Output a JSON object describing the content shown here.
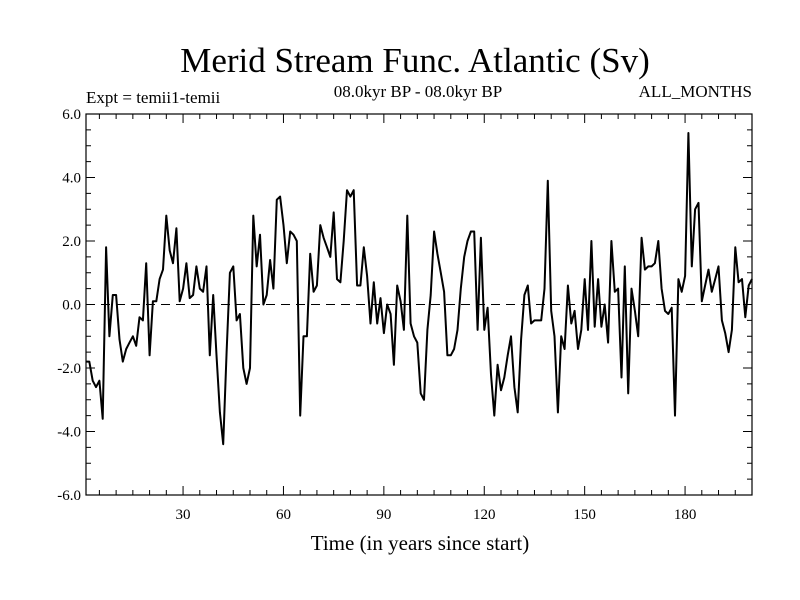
{
  "chart_data": {
    "type": "line",
    "title": "Merid Stream Func. Atlantic (Sv)",
    "subtitle_left": "Expt = temii1-temii",
    "subtitle_center": "08.0kyr BP - 08.0kyr BP",
    "subtitle_right": "ALL_MONTHS",
    "xlabel": "Time (in years since start)",
    "ylabel": "",
    "xlim": [
      1,
      200
    ],
    "ylim": [
      -6,
      6
    ],
    "x_ticks": [
      30,
      60,
      90,
      120,
      150,
      180
    ],
    "x_tick_labels": [
      "30",
      "60",
      "90",
      "120",
      "150",
      "180"
    ],
    "y_ticks": [
      -6,
      -4,
      -2,
      0,
      2,
      4,
      6
    ],
    "y_tick_labels": [
      "-6.0",
      "-4.0",
      "-2.0",
      "0.0",
      "2.0",
      "4.0",
      "6.0"
    ],
    "zero_line": "dashed",
    "grid": false,
    "series": [
      {
        "name": "Merid Stream Func.",
        "color": "#000000",
        "x_start": 1,
        "x_step": 1,
        "values": [
          -1.8,
          -1.8,
          -2.4,
          -2.6,
          -2.4,
          -3.6,
          1.8,
          -1.0,
          0.3,
          0.3,
          -1.1,
          -1.8,
          -1.4,
          -1.2,
          -1.0,
          -1.3,
          -0.4,
          -0.5,
          1.3,
          -1.6,
          0.1,
          0.1,
          0.8,
          1.1,
          2.8,
          1.7,
          1.3,
          2.4,
          0.1,
          0.5,
          1.3,
          0.2,
          0.3,
          1.2,
          0.5,
          0.4,
          1.2,
          -1.6,
          0.3,
          -1.6,
          -3.4,
          -4.4,
          -1.5,
          1.0,
          1.2,
          -0.5,
          -0.3,
          -2.0,
          -2.5,
          -2.0,
          2.8,
          1.2,
          2.2,
          0.0,
          0.3,
          1.4,
          0.5,
          3.3,
          3.4,
          2.5,
          1.3,
          2.3,
          2.2,
          2.0,
          -3.5,
          -1.0,
          -1.0,
          1.6,
          0.4,
          0.6,
          2.5,
          2.1,
          1.8,
          1.5,
          2.9,
          0.8,
          0.7,
          2.0,
          3.6,
          3.4,
          3.6,
          0.6,
          0.6,
          1.8,
          0.9,
          -0.6,
          0.7,
          -0.6,
          0.2,
          -0.9,
          0.0,
          -0.3,
          -1.9,
          0.6,
          0.1,
          -0.8,
          2.8,
          -0.6,
          -1.0,
          -1.2,
          -2.8,
          -3.0,
          -0.8,
          0.3,
          2.3,
          1.6,
          1.0,
          0.4,
          -1.6,
          -1.6,
          -1.4,
          -0.8,
          0.5,
          1.5,
          2.0,
          2.3,
          2.3,
          -0.8,
          2.1,
          -0.8,
          -0.1,
          -2.2,
          -3.5,
          -1.9,
          -2.7,
          -2.3,
          -1.6,
          -1.0,
          -2.6,
          -3.4,
          -1.1,
          0.3,
          0.6,
          -0.6,
          -0.5,
          -0.5,
          -0.5,
          0.5,
          3.9,
          -0.2,
          -1.0,
          -3.4,
          -1.0,
          -1.4,
          0.6,
          -0.6,
          -0.2,
          -1.4,
          -0.8,
          0.8,
          -0.8,
          2.0,
          -0.7,
          0.8,
          -0.7,
          0.0,
          -1.2,
          2.0,
          0.4,
          0.5,
          -2.3,
          1.2,
          -2.8,
          0.5,
          -0.2,
          -1.0,
          2.1,
          1.1,
          1.2,
          1.2,
          1.3,
          2.0,
          0.5,
          -0.2,
          -0.3,
          -0.1,
          -3.5,
          0.8,
          0.4,
          0.9,
          5.4,
          1.2,
          3.0,
          3.2,
          0.1,
          0.6,
          1.1,
          0.4,
          0.8,
          1.2,
          -0.5,
          -0.9,
          -1.5,
          -0.8,
          1.8,
          0.7,
          0.8,
          -0.4,
          0.6,
          0.8
        ]
      }
    ]
  }
}
